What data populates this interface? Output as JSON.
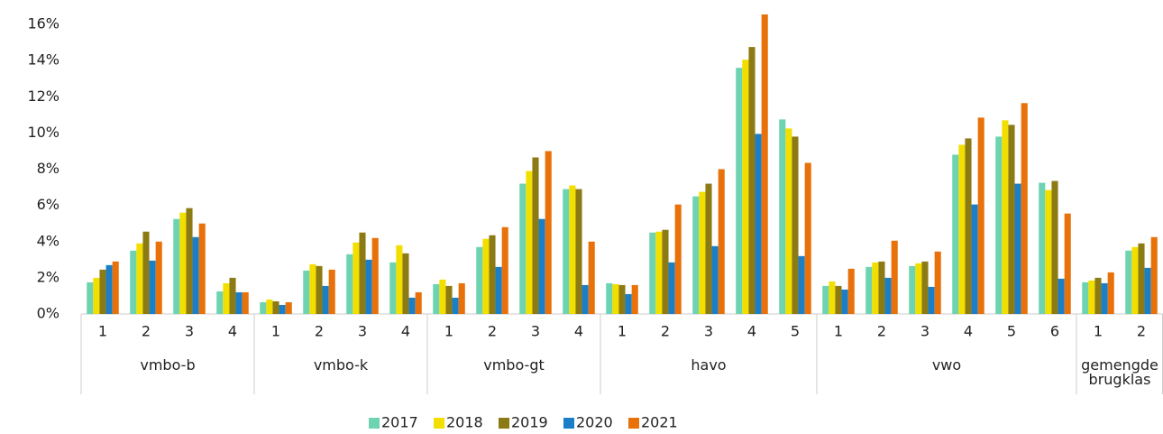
{
  "chart_data": {
    "type": "bar",
    "groups": [
      {
        "name": "vmbo-b",
        "categories": [
          "1",
          "2",
          "3",
          "4"
        ]
      },
      {
        "name": "vmbo-k",
        "categories": [
          "1",
          "2",
          "3",
          "4"
        ]
      },
      {
        "name": "vmbo-gt",
        "categories": [
          "1",
          "2",
          "3",
          "4"
        ]
      },
      {
        "name": "havo",
        "categories": [
          "1",
          "2",
          "3",
          "4",
          "5"
        ]
      },
      {
        "name": "vwo",
        "categories": [
          "1",
          "2",
          "3",
          "4",
          "5",
          "6"
        ]
      },
      {
        "name": "gemengde brugklas",
        "categories": [
          "1",
          "2"
        ]
      }
    ],
    "series": [
      {
        "name": "2017",
        "color": "#6dd3b0",
        "values": [
          1.75,
          3.5,
          5.25,
          1.25,
          0.65,
          2.4,
          3.3,
          2.85,
          1.65,
          3.7,
          7.2,
          6.9,
          1.7,
          4.5,
          6.5,
          13.6,
          10.75,
          1.55,
          2.6,
          2.65,
          8.8,
          9.8,
          7.25,
          1.75,
          3.5
        ]
      },
      {
        "name": "2018",
        "color": "#f2df00",
        "values": [
          2.0,
          3.9,
          5.6,
          1.7,
          0.8,
          2.75,
          3.95,
          3.8,
          1.9,
          4.15,
          7.9,
          7.1,
          1.65,
          4.55,
          6.75,
          14.05,
          10.25,
          1.8,
          2.85,
          2.8,
          9.35,
          10.7,
          6.85,
          1.85,
          3.7
        ]
      },
      {
        "name": "2019",
        "color": "#8c7a14",
        "values": [
          2.45,
          4.55,
          5.85,
          2.0,
          0.7,
          2.65,
          4.5,
          3.35,
          1.55,
          4.35,
          8.65,
          6.9,
          1.6,
          4.65,
          7.2,
          14.75,
          9.8,
          1.55,
          2.9,
          2.9,
          9.7,
          10.45,
          7.35,
          2.0,
          3.9
        ]
      },
      {
        "name": "2020",
        "color": "#1b7fc8",
        "values": [
          2.7,
          2.95,
          4.25,
          1.2,
          0.5,
          1.55,
          3.0,
          0.9,
          0.9,
          2.6,
          5.25,
          1.6,
          1.1,
          2.85,
          3.75,
          9.95,
          3.2,
          1.35,
          2.0,
          1.5,
          6.05,
          7.2,
          1.95,
          1.7,
          2.55
        ]
      },
      {
        "name": "2021",
        "color": "#e8710a",
        "values": [
          2.9,
          4.0,
          5.0,
          1.2,
          0.65,
          2.45,
          4.2,
          1.2,
          1.7,
          4.8,
          9.0,
          4.0,
          1.6,
          6.05,
          8.0,
          16.55,
          8.35,
          2.5,
          4.05,
          3.45,
          10.85,
          11.65,
          5.55,
          2.3,
          4.25
        ]
      }
    ],
    "ylim": [
      0,
      17
    ],
    "yticks": [
      {
        "value": 0,
        "label": "0%"
      },
      {
        "value": 2,
        "label": "2%"
      },
      {
        "value": 4,
        "label": "4%"
      },
      {
        "value": 6,
        "label": "6%"
      },
      {
        "value": 8,
        "label": "8%"
      },
      {
        "value": 10,
        "label": "10%"
      },
      {
        "value": 12,
        "label": "12%"
      },
      {
        "value": 14,
        "label": "14%"
      },
      {
        "value": 16,
        "label": "16%"
      }
    ],
    "grid": false,
    "legend": "bottom"
  }
}
